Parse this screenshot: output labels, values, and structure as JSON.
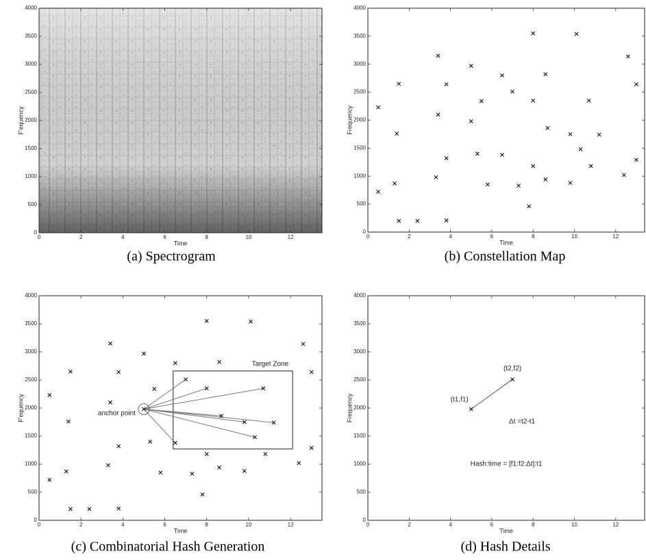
{
  "chart_data": [
    {
      "type": "spectrogram",
      "caption": "(a) Spectrogram",
      "x_label": "Time",
      "y_label": "F'equency",
      "xlim": [
        0,
        13.5
      ],
      "ylim": [
        0,
        4000
      ],
      "xticks": [
        0,
        2,
        4,
        6,
        8,
        10,
        12
      ],
      "yticks": [
        0,
        500,
        1000,
        1500,
        2000,
        2500,
        3000,
        3500,
        4000
      ]
    },
    {
      "type": "scatter",
      "caption": "(b) Constellation Map",
      "x_label": "Time",
      "y_label": "Frequency",
      "xlim": [
        0,
        13.4
      ],
      "ylim": [
        0,
        4000
      ],
      "xticks": [
        0,
        2,
        4,
        6,
        8,
        10,
        12
      ],
      "yticks": [
        0,
        500,
        1000,
        1500,
        2000,
        2500,
        3000,
        3500,
        4000
      ],
      "x": [
        0.5,
        0.5,
        1.3,
        1.4,
        1.5,
        1.5,
        2.4,
        3.3,
        3.4,
        3.4,
        3.8,
        3.8,
        3.8,
        5.0,
        5.0,
        5.3,
        5.5,
        5.8,
        6.5,
        6.5,
        7.0,
        7.3,
        7.8,
        8.0,
        8.0,
        8.0,
        8.6,
        8.7,
        8.6,
        9.8,
        9.8,
        10.1,
        10.3,
        10.7,
        10.8,
        11.2,
        12.4,
        12.6,
        13.0,
        13.0
      ],
      "values": [
        2230,
        720,
        870,
        1760,
        2650,
        200,
        200,
        980,
        3150,
        2100,
        2640,
        1320,
        210,
        2970,
        1980,
        1400,
        2340,
        850,
        2800,
        1380,
        2510,
        830,
        460,
        3550,
        2350,
        1180,
        2820,
        1860,
        940,
        1750,
        880,
        3540,
        1480,
        2350,
        1180,
        1740,
        1020,
        3140,
        2640,
        1290
      ]
    },
    {
      "type": "scatter",
      "caption": "(c) Combinatorial Hash Generation",
      "x_label": "Time",
      "y_label": "F'equency",
      "xlim": [
        0,
        13.5
      ],
      "ylim": [
        0,
        4000
      ],
      "xticks": [
        0,
        2,
        4,
        6,
        8,
        10,
        12
      ],
      "yticks": [
        0,
        500,
        1000,
        1500,
        2000,
        2500,
        3000,
        3500,
        4000
      ],
      "x": [
        0.5,
        0.5,
        1.3,
        1.4,
        1.5,
        1.5,
        2.4,
        3.3,
        3.4,
        3.4,
        3.8,
        3.8,
        3.8,
        5.0,
        5.0,
        5.3,
        5.5,
        5.8,
        6.5,
        6.5,
        7.0,
        7.3,
        7.8,
        8.0,
        8.0,
        8.0,
        8.6,
        8.7,
        8.6,
        9.8,
        9.8,
        10.1,
        10.3,
        10.7,
        10.8,
        11.2,
        12.4,
        12.6,
        13.0,
        13.0
      ],
      "values": [
        2230,
        720,
        870,
        1760,
        2650,
        200,
        200,
        980,
        3150,
        2100,
        2640,
        1320,
        210,
        2970,
        1980,
        1400,
        2340,
        850,
        2800,
        1380,
        2510,
        830,
        460,
        3550,
        2350,
        1180,
        2820,
        1860,
        940,
        1750,
        880,
        3540,
        1480,
        2350,
        1180,
        1740,
        1020,
        3140,
        2640,
        1290
      ],
      "anchor": {
        "label": "anchor point",
        "x": 5.0,
        "y": 1980
      },
      "target_zone": {
        "label": "Target Zone",
        "xlim": [
          6.4,
          12.1
        ],
        "ylim": [
          1270,
          2660
        ]
      }
    },
    {
      "type": "scatter",
      "caption": "(d) Hash Details",
      "x_label": "Time",
      "y_label": "Frequency",
      "connect": true,
      "xlim": [
        0,
        13.4
      ],
      "ylim": [
        0,
        4000
      ],
      "xticks": [
        0,
        2,
        4,
        6,
        8,
        10,
        12
      ],
      "yticks": [
        0,
        500,
        1000,
        1500,
        2000,
        2500,
        3000,
        3500,
        4000
      ],
      "x": [
        5.0,
        7.0
      ],
      "values": [
        1980,
        2510
      ],
      "point_labels": [
        "(t1,f1)",
        "(t2,f2)"
      ],
      "annotations": [
        "Δt =t2-t1",
        "Hash:time = [f1:f2:Δt]:t1"
      ]
    }
  ]
}
